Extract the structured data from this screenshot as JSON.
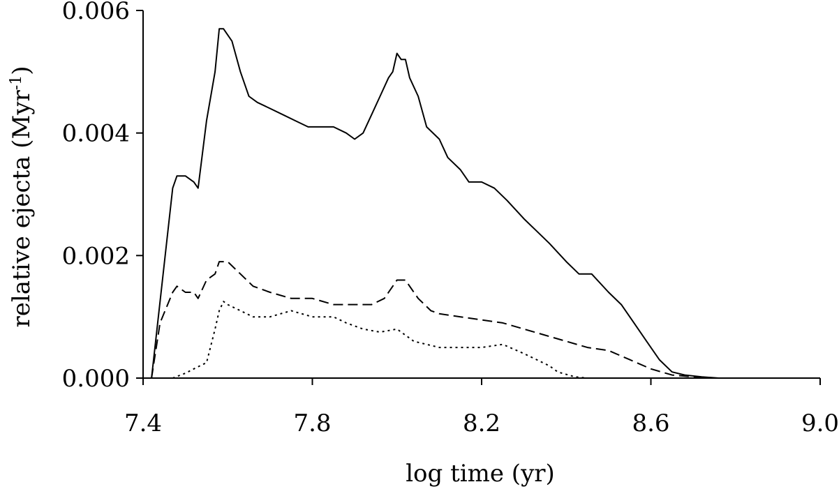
{
  "chart_data": {
    "type": "line",
    "title": "",
    "xlabel": "log time (yr)",
    "ylabel": "relative ejecta (Myr",
    "ylabel_sup": "-1",
    "ylabel_close": ")",
    "xlim": [
      7.4,
      9.0
    ],
    "ylim": [
      0.0,
      0.006
    ],
    "xticks": [
      "7.4",
      "7.8",
      "8.2",
      "8.6",
      "9.0"
    ],
    "yticks": [
      "0.000",
      "0.002",
      "0.004",
      "0.006"
    ],
    "grid": false,
    "legend": "none",
    "series": [
      {
        "style": "solid",
        "x": [
          7.42,
          7.47,
          7.48,
          7.5,
          7.52,
          7.53,
          7.55,
          7.57,
          7.58,
          7.59,
          7.6,
          7.61,
          7.63,
          7.65,
          7.67,
          7.7,
          7.73,
          7.76,
          7.79,
          7.82,
          7.85,
          7.88,
          7.9,
          7.92,
          7.94,
          7.96,
          7.98,
          7.99,
          8.0,
          8.01,
          8.02,
          8.03,
          8.05,
          8.07,
          8.1,
          8.12,
          8.15,
          8.17,
          8.2,
          8.23,
          8.26,
          8.3,
          8.33,
          8.36,
          8.4,
          8.43,
          8.46,
          8.5,
          8.53,
          8.56,
          8.59,
          8.62,
          8.65,
          8.68,
          8.72,
          8.76,
          8.82
        ],
        "y": [
          0.0,
          0.0031,
          0.0033,
          0.0033,
          0.0032,
          0.0031,
          0.0042,
          0.005,
          0.0057,
          0.0057,
          0.0056,
          0.0055,
          0.005,
          0.0046,
          0.0045,
          0.0044,
          0.0043,
          0.0042,
          0.0041,
          0.0041,
          0.0041,
          0.004,
          0.0039,
          0.004,
          0.0043,
          0.0046,
          0.0049,
          0.005,
          0.0053,
          0.0052,
          0.0052,
          0.0049,
          0.0046,
          0.0041,
          0.0039,
          0.0036,
          0.0034,
          0.0032,
          0.0032,
          0.0031,
          0.0029,
          0.0026,
          0.0024,
          0.0022,
          0.0019,
          0.0017,
          0.0017,
          0.0014,
          0.0012,
          0.0009,
          0.0006,
          0.0003,
          0.0001,
          5e-05,
          2e-05,
          0.0,
          0.0
        ]
      },
      {
        "style": "dashed",
        "x": [
          7.42,
          7.44,
          7.47,
          7.48,
          7.5,
          7.52,
          7.53,
          7.55,
          7.57,
          7.58,
          7.59,
          7.6,
          7.63,
          7.66,
          7.7,
          7.75,
          7.8,
          7.85,
          7.9,
          7.94,
          7.97,
          7.99,
          8.0,
          8.02,
          8.03,
          8.05,
          8.08,
          8.1,
          8.15,
          8.2,
          8.25,
          8.3,
          8.35,
          8.4,
          8.45,
          8.5,
          8.55,
          8.6,
          8.65,
          8.7,
          8.75,
          8.8
        ],
        "y": [
          0.0,
          0.0009,
          0.0014,
          0.0015,
          0.0014,
          0.0014,
          0.0013,
          0.0016,
          0.0017,
          0.0019,
          0.0019,
          0.0019,
          0.0017,
          0.0015,
          0.0014,
          0.0013,
          0.0013,
          0.0012,
          0.0012,
          0.0012,
          0.0013,
          0.0015,
          0.0016,
          0.0016,
          0.0015,
          0.0013,
          0.0011,
          0.00105,
          0.001,
          0.00095,
          0.0009,
          0.0008,
          0.0007,
          0.0006,
          0.0005,
          0.00045,
          0.0003,
          0.00015,
          5e-05,
          2e-05,
          0.0,
          0.0
        ]
      },
      {
        "style": "dotted",
        "x": [
          7.47,
          7.5,
          7.52,
          7.54,
          7.55,
          7.57,
          7.58,
          7.59,
          7.6,
          7.63,
          7.66,
          7.7,
          7.75,
          7.8,
          7.85,
          7.88,
          7.92,
          7.96,
          8.0,
          8.02,
          8.04,
          8.07,
          8.1,
          8.15,
          8.2,
          8.25,
          8.3,
          8.33,
          8.36,
          8.38,
          8.42,
          8.45
        ],
        "y": [
          0.0,
          8e-05,
          0.00015,
          0.00022,
          0.00025,
          0.0008,
          0.0011,
          0.00125,
          0.0012,
          0.0011,
          0.001,
          0.001,
          0.0011,
          0.001,
          0.001,
          0.0009,
          0.0008,
          0.00075,
          0.0008,
          0.0007,
          0.0006,
          0.00055,
          0.0005,
          0.0005,
          0.0005,
          0.00055,
          0.0004,
          0.0003,
          0.0002,
          0.0001,
          2e-05,
          0.0
        ]
      }
    ]
  }
}
